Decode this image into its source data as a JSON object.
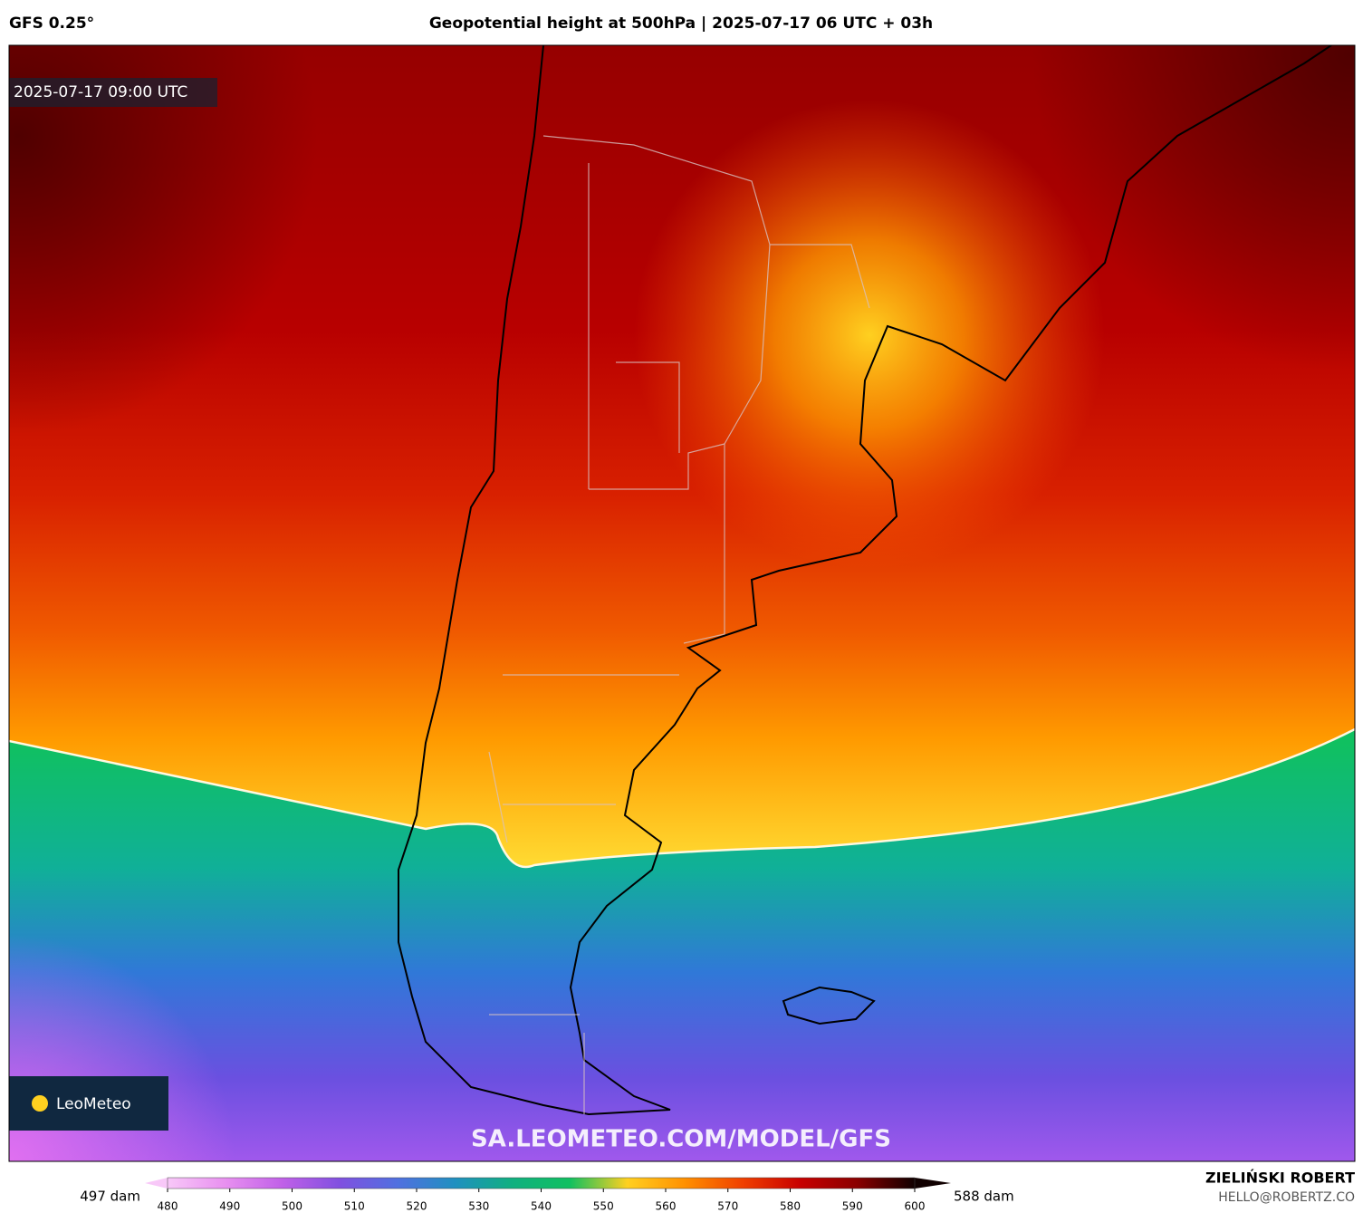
{
  "header": {
    "model": "GFS 0.25°",
    "title": "Geopotential height at 500hPa | 2025-07-17 06 UTC + 03h"
  },
  "map": {
    "timestamp": "2025-07-17 09:00 UTC",
    "logo": "LeoMeteo",
    "watermark": "SA.LEOMETEO.COM/MODEL/GFS"
  },
  "colorbar": {
    "min_label": "497 dam",
    "max_label": "588 dam",
    "lim": [
      480,
      600
    ],
    "ticks": [
      480,
      490,
      500,
      510,
      520,
      530,
      540,
      550,
      560,
      570,
      580,
      590,
      600
    ],
    "colors": [
      "#f8c8f8",
      "#e890f0",
      "#c060e8",
      "#8050e0",
      "#5070e0",
      "#2090c0",
      "#10b080",
      "#10c060",
      "#ffd020",
      "#ff9000",
      "#f04000",
      "#c80000",
      "#8a0000",
      "#100000"
    ]
  },
  "footer": {
    "author": "ZIELIŃSKI ROBERT",
    "contact": "HELLO@ROBERTZ.CO"
  }
}
